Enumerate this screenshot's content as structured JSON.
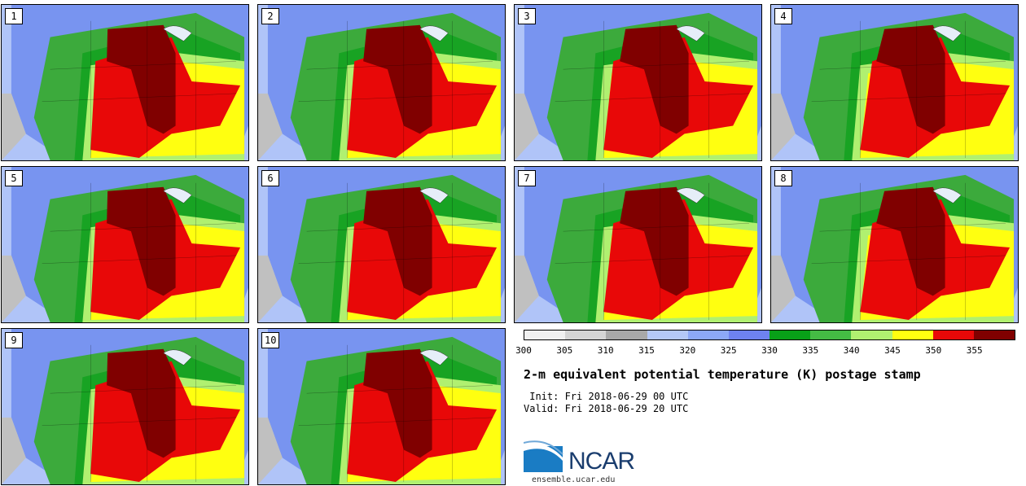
{
  "panels": [
    {
      "label": "1"
    },
    {
      "label": "2"
    },
    {
      "label": "3"
    },
    {
      "label": "4"
    },
    {
      "label": "5"
    },
    {
      "label": "6"
    },
    {
      "label": "7"
    },
    {
      "label": "8"
    },
    {
      "label": "9"
    },
    {
      "label": "10"
    }
  ],
  "colorbar": {
    "ticks": [
      "300",
      "305",
      "310",
      "315",
      "320",
      "325",
      "330",
      "335",
      "340",
      "345",
      "350",
      "355"
    ],
    "colors": [
      "#f0f0f0",
      "#d4d4d4",
      "#a8a8a8",
      "#b4c8f8",
      "#8ca8f8",
      "#6e82f0",
      "#08a018",
      "#44bc44",
      "#b0f070",
      "#ffff10",
      "#e80808",
      "#800000"
    ]
  },
  "title": "2-m equivalent potential temperature (K) postage stamp",
  "init": " Init: Fri 2018-06-29 00 UTC",
  "valid": "Valid: Fri 2018-06-29 20 UTC",
  "logo": {
    "text": "NCAR",
    "url": "ensemble.ucar.edu"
  }
}
